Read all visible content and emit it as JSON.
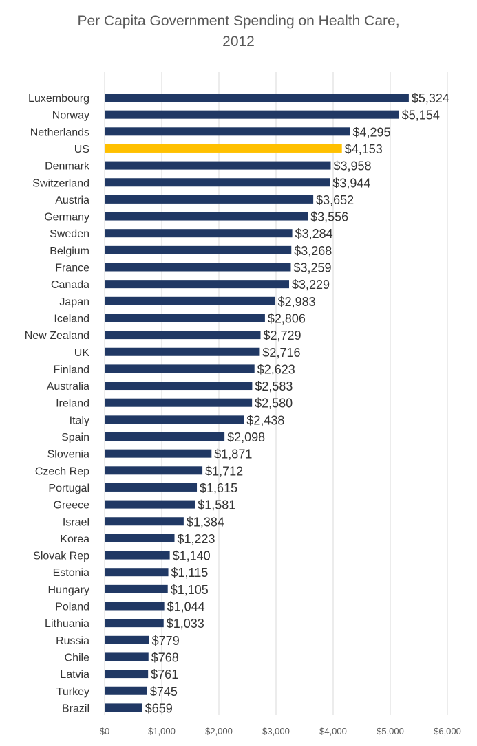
{
  "chart_data": {
    "type": "bar",
    "orientation": "horizontal",
    "title_lines": [
      "Per Capita Government Spending on Health Care,",
      "2012"
    ],
    "xlabel": "",
    "ylabel": "",
    "xlim": [
      0,
      6000
    ],
    "grid": "vertical",
    "ticks": [
      {
        "value": 0,
        "label": "$0"
      },
      {
        "value": 1000,
        "label": "$1,000"
      },
      {
        "value": 2000,
        "label": "$2,000"
      },
      {
        "value": 3000,
        "label": "$3,000"
      },
      {
        "value": 4000,
        "label": "$4,000"
      },
      {
        "value": 5000,
        "label": "$5,000"
      },
      {
        "value": 6000,
        "label": "$6,000"
      }
    ],
    "colors": {
      "default": "#203864",
      "highlight": "#FFC000",
      "grid": "#D9D9D9"
    },
    "highlight_category": "US",
    "categories": [
      "Luxembourg",
      "Norway",
      "Netherlands",
      "US",
      "Denmark",
      "Switzerland",
      "Austria",
      "Germany",
      "Sweden",
      "Belgium",
      "France",
      "Canada",
      "Japan",
      "Iceland",
      "New Zealand",
      "UK",
      "Finland",
      "Australia",
      "Ireland",
      "Italy",
      "Spain",
      "Slovenia",
      "Czech Rep",
      "Portugal",
      "Greece",
      "Israel",
      "Korea",
      "Slovak Rep",
      "Estonia",
      "Hungary",
      "Poland",
      "Lithuania",
      "Russia",
      "Chile",
      "Latvia",
      "Turkey",
      "Brazil"
    ],
    "values": [
      5324,
      5154,
      4295,
      4153,
      3958,
      3944,
      3652,
      3556,
      3284,
      3268,
      3259,
      3229,
      2983,
      2806,
      2729,
      2716,
      2623,
      2583,
      2580,
      2438,
      2098,
      1871,
      1712,
      1615,
      1581,
      1384,
      1223,
      1140,
      1115,
      1105,
      1044,
      1033,
      779,
      768,
      761,
      745,
      659
    ],
    "value_labels": [
      "$5,324",
      "$5,154",
      "$4,295",
      "$4,153",
      "$3,958",
      "$3,944",
      "$3,652",
      "$3,556",
      "$3,284",
      "$3,268",
      "$3,259",
      "$3,229",
      "$2,983",
      "$2,806",
      "$2,729",
      "$2,716",
      "$2,623",
      "$2,583",
      "$2,580",
      "$2,438",
      "$2,098",
      "$1,871",
      "$1,712",
      "$1,615",
      "$1,581",
      "$1,384",
      "$1,223",
      "$1,140",
      "$1,115",
      "$1,105",
      "$1,044",
      "$1,033",
      "$779",
      "$768",
      "$761",
      "$745",
      "$659"
    ]
  }
}
